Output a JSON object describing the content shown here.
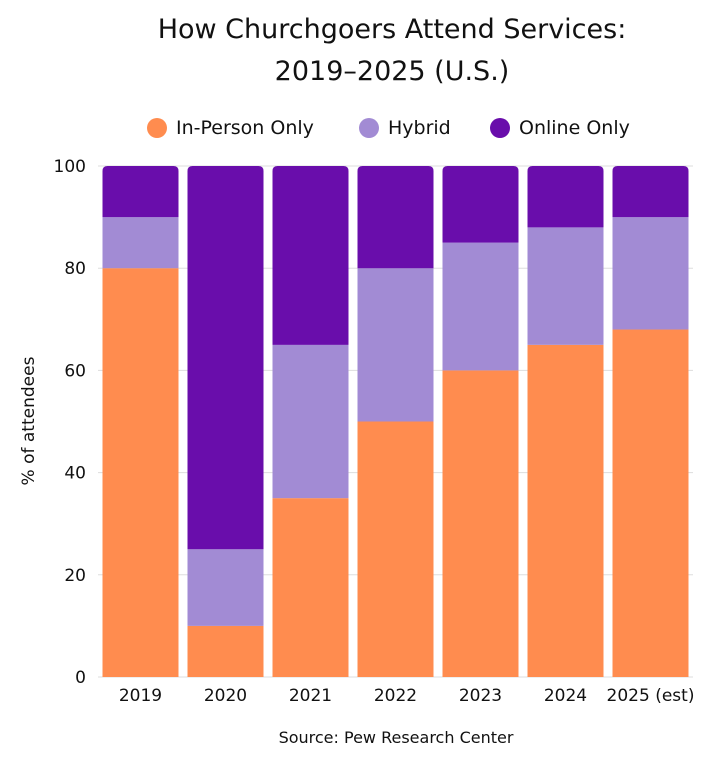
{
  "chart_data": {
    "type": "bar",
    "stacked": true,
    "title": "How Churchgoers Attend Services:",
    "title_line2": "2019–2025 (U.S.)",
    "xlabel": "",
    "ylabel": "% of attendees",
    "ylim": [
      0,
      100
    ],
    "yticks": [
      0,
      20,
      40,
      60,
      80,
      100
    ],
    "grid": true,
    "legend_position": "top",
    "categories": [
      "2019",
      "2020",
      "2021",
      "2022",
      "2023",
      "2024",
      "2025 (est)"
    ],
    "series": [
      {
        "name": "In-Person Only",
        "color": "#FF8C4F",
        "values": [
          80,
          10,
          35,
          50,
          60,
          65,
          68
        ]
      },
      {
        "name": "Hybrid",
        "color": "#A28BD4",
        "values": [
          10,
          15,
          30,
          30,
          25,
          23,
          22
        ]
      },
      {
        "name": "Online Only",
        "color": "#690DAB",
        "values": [
          10,
          75,
          35,
          20,
          15,
          12,
          10
        ]
      }
    ],
    "source": "Source: Pew Research Center"
  }
}
